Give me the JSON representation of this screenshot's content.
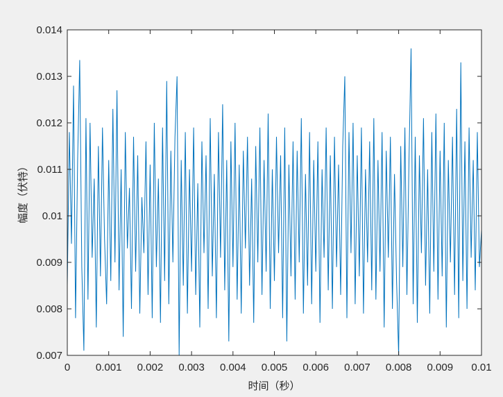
{
  "chart_data": {
    "type": "line",
    "title": "",
    "xlabel": "时间（秒）",
    "ylabel": "幅度（伏特）",
    "xlim": [
      0,
      0.01
    ],
    "ylim": [
      0.007,
      0.014
    ],
    "xticks": [
      "0",
      "0.001",
      "0.002",
      "0.003",
      "0.004",
      "0.005",
      "0.006",
      "0.007",
      "0.008",
      "0.009",
      "0.01"
    ],
    "yticks": [
      "0.007",
      "0.008",
      "0.009",
      "0.01",
      "0.011",
      "0.012",
      "0.013",
      "0.014"
    ],
    "grid": false,
    "line_color": "#0072BD",
    "background": "#f0f0f0",
    "series": [
      {
        "values": [
          0.0085,
          0.0118,
          0.0094,
          0.0128,
          0.0078,
          0.0112,
          0.01335,
          0.0089,
          0.0071,
          0.0121,
          0.0082,
          0.012,
          0.0091,
          0.0108,
          0.0076,
          0.0115,
          0.0087,
          0.0119,
          0.0095,
          0.0081,
          0.0112,
          0.0086,
          0.0123,
          0.009,
          0.0127,
          0.0084,
          0.011,
          0.0074,
          0.0118,
          0.0093,
          0.0106,
          0.008,
          0.0117,
          0.0088,
          0.0113,
          0.0079,
          0.0104,
          0.0092,
          0.0116,
          0.0083,
          0.0111,
          0.0078,
          0.012,
          0.0089,
          0.0108,
          0.0077,
          0.0119,
          0.0086,
          0.0129,
          0.0081,
          0.0114,
          0.009,
          0.0117,
          0.013,
          0.007,
          0.0112,
          0.0085,
          0.0118,
          0.0079,
          0.011,
          0.0088,
          0.0119,
          0.0083,
          0.0107,
          0.0076,
          0.0116,
          0.0092,
          0.0113,
          0.008,
          0.0121,
          0.0087,
          0.0109,
          0.0078,
          0.0118,
          0.0091,
          0.0124,
          0.0084,
          0.0112,
          0.0073,
          0.0116,
          0.0089,
          0.012,
          0.0082,
          0.0111,
          0.0079,
          0.0114,
          0.0093,
          0.0117,
          0.0085,
          0.0108,
          0.0077,
          0.0115,
          0.009,
          0.0119,
          0.0083,
          0.0112,
          0.0088,
          0.0122,
          0.008,
          0.011,
          0.0086,
          0.0117,
          0.0092,
          0.0113,
          0.0078,
          0.0119,
          0.0073,
          0.0111,
          0.0087,
          0.0116,
          0.0082,
          0.0114,
          0.009,
          0.0121,
          0.0079,
          0.0109,
          0.0085,
          0.0118,
          0.0081,
          0.0112,
          0.0088,
          0.0116,
          0.0077,
          0.011,
          0.0091,
          0.0119,
          0.0084,
          0.0113,
          0.008,
          0.0117,
          0.0089,
          0.0111,
          0.0083,
          0.0115,
          0.013,
          0.0078,
          0.0118,
          0.0092,
          0.012,
          0.0081,
          0.0113,
          0.0087,
          0.0119,
          0.0079,
          0.011,
          0.009,
          0.0116,
          0.0084,
          0.0121,
          0.0082,
          0.0112,
          0.0088,
          0.0118,
          0.0076,
          0.0114,
          0.0091,
          0.0117,
          0.008,
          0.0109,
          0.0086,
          0.007,
          0.0115,
          0.0089,
          0.0119,
          0.0083,
          0.0112,
          0.0136,
          0.0081,
          0.0117,
          0.0077,
          0.0113,
          0.0092,
          0.0121,
          0.0085,
          0.011,
          0.0079,
          0.0118,
          0.0088,
          0.0122,
          0.0082,
          0.0114,
          0.0087,
          0.012,
          0.0076,
          0.0112,
          0.009,
          0.0117,
          0.0083,
          0.0123,
          0.0078,
          0.0133,
          0.0086,
          0.0116,
          0.008,
          0.0119,
          0.0091,
          0.0112,
          0.0084,
          0.0118,
          0.0089,
          0.0097
        ]
      }
    ]
  }
}
